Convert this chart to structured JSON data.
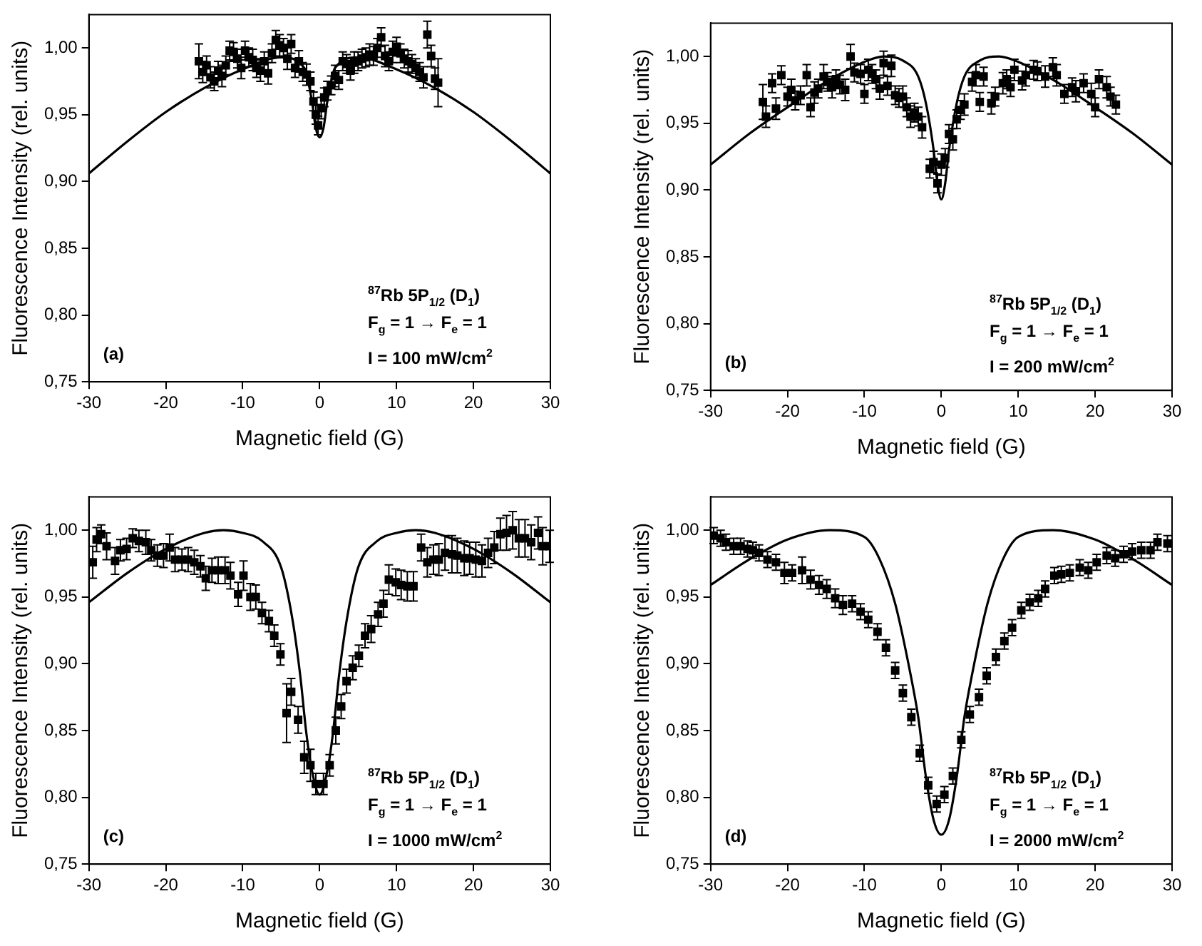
{
  "chart_data": [
    {
      "type": "scatter",
      "xlabel": "Magnetic field (G)",
      "ylabel": "Fluorescence Intensity (rel. units)",
      "xlim": [
        -30,
        30
      ],
      "xticks": [
        -30,
        -20,
        -10,
        0,
        10,
        20,
        30
      ],
      "ylim": [
        0.75,
        1.025
      ],
      "yticks": [
        {
          "value": 0.75,
          "label": "0,75"
        },
        {
          "value": 0.8,
          "label": "0,80"
        },
        {
          "value": 0.85,
          "label": "0,85"
        },
        {
          "value": 0.9,
          "label": "0,90"
        },
        {
          "value": 0.95,
          "label": "0,95"
        },
        {
          "value": 1.0,
          "label": "1,00"
        }
      ],
      "grid": false,
      "legend": false,
      "annotations": [
        "(a)",
        "$^{87}$Rb 5P$_{1/2}$ (D$_{1}$)",
        "F$_{g}$ = 1 → F$_{e}$ = 1",
        "I = 100 mW/cm$^{2}$"
      ],
      "series": [
        {
          "marker": "square",
          "color": "#000000",
          "x": [
            -15.7,
            -15.2,
            -14.7,
            -14.2,
            -13.7,
            -13.2,
            -12.7,
            -12.2,
            -11.7,
            -11.2,
            -10.7,
            -10.2,
            -9.7,
            -9.2,
            -8.7,
            -8.2,
            -7.7,
            -7.2,
            -6.7,
            -6.2,
            -5.7,
            -5.2,
            -4.7,
            -4.2,
            -3.7,
            -3.2,
            -2.7,
            -2.2,
            -1.7,
            -1.2,
            -0.8,
            -0.5,
            -0.2,
            0.2,
            0.6,
            1.0,
            1.5,
            2.0,
            2.5,
            3.0,
            3.5,
            4.0,
            4.5,
            5.0,
            5.5,
            6.0,
            6.5,
            7.0,
            7.5,
            8.0,
            8.5,
            9.0,
            9.5,
            10.0,
            10.5,
            11.0,
            11.5,
            12.0,
            12.5,
            13.0,
            13.5,
            14.0,
            14.5,
            15.0,
            15.4
          ],
          "values": [
            0.99,
            0.982,
            0.987,
            0.978,
            0.975,
            0.983,
            0.979,
            0.987,
            0.998,
            0.997,
            0.992,
            0.985,
            0.998,
            0.993,
            0.991,
            0.985,
            0.983,
            0.99,
            0.981,
            0.996,
            1.006,
            1.002,
            1.0,
            0.992,
            1.003,
            0.985,
            0.99,
            0.982,
            0.98,
            0.975,
            0.96,
            0.95,
            0.942,
            0.955,
            0.963,
            0.968,
            0.972,
            0.979,
            0.976,
            0.99,
            0.988,
            0.983,
            0.989,
            0.99,
            0.992,
            0.993,
            0.995,
            0.994,
            1.0,
            1.008,
            0.994,
            0.99,
            0.997,
            1.001,
            0.996,
            0.992,
            0.99,
            0.988,
            0.985,
            0.982,
            0.978,
            1.01,
            0.994,
            0.977,
            0.974
          ],
          "errors": [
            0.013,
            0.008,
            0.007,
            0.008,
            0.007,
            0.007,
            0.008,
            0.007,
            0.007,
            0.007,
            0.007,
            0.008,
            0.007,
            0.007,
            0.008,
            0.007,
            0.008,
            0.007,
            0.008,
            0.007,
            0.007,
            0.008,
            0.007,
            0.008,
            0.007,
            0.007,
            0.008,
            0.007,
            0.008,
            0.007,
            0.007,
            0.007,
            0.007,
            0.008,
            0.007,
            0.007,
            0.007,
            0.008,
            0.007,
            0.007,
            0.007,
            0.007,
            0.008,
            0.007,
            0.007,
            0.007,
            0.008,
            0.007,
            0.007,
            0.007,
            0.008,
            0.007,
            0.008,
            0.007,
            0.007,
            0.007,
            0.008,
            0.007,
            0.007,
            0.007,
            0.008,
            0.01,
            0.008,
            0.008,
            0.018
          ]
        },
        {
          "type": "line",
          "color": "#000000",
          "x": [
            -30,
            -25,
            -20,
            -15,
            -10,
            -5,
            -2,
            -1,
            -0.5,
            0,
            0.5,
            1,
            2,
            5,
            10,
            15,
            20,
            25,
            30
          ],
          "values": [
            0.906,
            0.93,
            0.952,
            0.97,
            0.984,
            0.993,
            0.985,
            0.96,
            0.94,
            0.933,
            0.94,
            0.96,
            0.985,
            0.993,
            0.984,
            0.97,
            0.952,
            0.93,
            0.906
          ]
        }
      ]
    },
    {
      "type": "scatter",
      "xlabel": "Magnetic field (G)",
      "ylabel": "Fluorescence Intensity (rel. units)",
      "xlim": [
        -30,
        30
      ],
      "xticks": [
        -30,
        -20,
        -10,
        0,
        10,
        20,
        30
      ],
      "ylim": [
        0.75,
        1.025
      ],
      "yticks": [
        {
          "value": 0.75,
          "label": "0,75"
        },
        {
          "value": 0.8,
          "label": "0,80"
        },
        {
          "value": 0.85,
          "label": "0,85"
        },
        {
          "value": 0.9,
          "label": "0,90"
        },
        {
          "value": 0.95,
          "label": "0,95"
        },
        {
          "value": 1.0,
          "label": "1,00"
        }
      ],
      "grid": false,
      "legend": false,
      "annotations": [
        "(b)",
        "$^{87}$Rb 5P$_{1/2}$ (D$_{1}$)",
        "F$_{g}$ = 1 → F$_{e}$ = 1",
        "I = 200 mW/cm$^{2}$"
      ],
      "series": [
        {
          "marker": "square",
          "color": "#000000",
          "x": [
            -23.2,
            -22.8,
            -22.0,
            -21.5,
            -20.8,
            -20.0,
            -19.5,
            -19.0,
            -18.3,
            -17.5,
            -17.0,
            -16.5,
            -16.0,
            -15.3,
            -14.8,
            -14.2,
            -13.7,
            -13.2,
            -12.5,
            -11.8,
            -11.3,
            -10.5,
            -10.0,
            -9.5,
            -9.0,
            -8.5,
            -8.0,
            -7.5,
            -7.0,
            -6.5,
            -6.0,
            -5.5,
            -5.0,
            -4.5,
            -4.0,
            -3.5,
            -3.0,
            -2.5,
            -1.5,
            -1.0,
            -0.5,
            0.0,
            0.5,
            1.0,
            1.5,
            2.0,
            2.5,
            3.0,
            4.0,
            4.5,
            5.0,
            5.5,
            6.5,
            7.0,
            8.0,
            8.5,
            9.0,
            9.5,
            10.5,
            11.0,
            12.0,
            12.5,
            13.5,
            14.5,
            15.0,
            16.0,
            17.0,
            17.5,
            18.5,
            19.5,
            20.0,
            20.5,
            21.5,
            22.0,
            22.7
          ],
          "values": [
            0.966,
            0.955,
            0.98,
            0.961,
            0.986,
            0.97,
            0.975,
            0.967,
            0.971,
            0.986,
            0.962,
            0.973,
            0.976,
            0.985,
            0.981,
            0.977,
            0.983,
            0.979,
            0.975,
            1.0,
            0.988,
            0.987,
            0.972,
            0.99,
            0.987,
            0.983,
            0.976,
            0.995,
            0.978,
            0.993,
            0.971,
            0.969,
            0.97,
            0.962,
            0.955,
            0.958,
            0.955,
            0.947,
            0.916,
            0.921,
            0.905,
            0.919,
            0.924,
            0.942,
            0.938,
            0.953,
            0.96,
            0.964,
            0.981,
            0.986,
            0.966,
            0.985,
            0.965,
            0.97,
            0.98,
            0.983,
            0.977,
            0.99,
            0.982,
            0.986,
            0.99,
            0.989,
            0.985,
            0.992,
            0.986,
            0.972,
            0.977,
            0.974,
            0.98,
            0.972,
            0.962,
            0.983,
            0.977,
            0.97,
            0.964
          ],
          "errors": [
            0.013,
            0.008,
            0.007,
            0.008,
            0.007,
            0.007,
            0.008,
            0.007,
            0.007,
            0.008,
            0.007,
            0.008,
            0.007,
            0.009,
            0.007,
            0.008,
            0.007,
            0.007,
            0.008,
            0.009,
            0.007,
            0.007,
            0.007,
            0.008,
            0.007,
            0.007,
            0.008,
            0.009,
            0.007,
            0.008,
            0.007,
            0.007,
            0.008,
            0.007,
            0.008,
            0.007,
            0.007,
            0.008,
            0.007,
            0.008,
            0.007,
            0.008,
            0.007,
            0.007,
            0.008,
            0.007,
            0.007,
            0.008,
            0.007,
            0.008,
            0.007,
            0.007,
            0.008,
            0.007,
            0.008,
            0.007,
            0.007,
            0.008,
            0.007,
            0.008,
            0.007,
            0.007,
            0.008,
            0.007,
            0.008,
            0.007,
            0.007,
            0.008,
            0.007,
            0.008,
            0.007,
            0.007,
            0.008,
            0.007,
            0.007
          ]
        },
        {
          "type": "line",
          "color": "#000000",
          "x": [
            -30,
            -25,
            -20,
            -15,
            -10,
            -7.5,
            -5,
            -3,
            -2,
            -1,
            -0.5,
            0,
            0.5,
            1,
            2,
            3,
            5,
            7.5,
            10,
            15,
            20,
            25,
            30
          ],
          "values": [
            0.919,
            0.942,
            0.962,
            0.981,
            0.996,
            1.0,
            0.997,
            0.985,
            0.965,
            0.93,
            0.905,
            0.893,
            0.905,
            0.93,
            0.965,
            0.985,
            0.997,
            1.0,
            0.996,
            0.981,
            0.962,
            0.942,
            0.919
          ]
        }
      ]
    },
    {
      "type": "scatter",
      "xlabel": "Magnetic field (G)",
      "ylabel": "Fluorescence Intensity (rel. units)",
      "xlim": [
        -30,
        30
      ],
      "xticks": [
        -30,
        -20,
        -10,
        0,
        10,
        20,
        30
      ],
      "ylim": [
        0.75,
        1.025
      ],
      "yticks": [
        {
          "value": 0.75,
          "label": "0,75"
        },
        {
          "value": 0.8,
          "label": "0,80"
        },
        {
          "value": 0.85,
          "label": "0,85"
        },
        {
          "value": 0.9,
          "label": "0,90"
        },
        {
          "value": 0.95,
          "label": "0,95"
        },
        {
          "value": 1.0,
          "label": "1,00"
        }
      ],
      "grid": false,
      "legend": false,
      "annotations": [
        "(c)",
        "$^{87}$Rb 5P$_{1/2}$ (D$_{1}$)",
        "F$_{g}$ = 1 → F$_{e}$ = 1",
        "I = 1000 mW/cm$^{2}$"
      ],
      "series": [
        {
          "marker": "square",
          "color": "#000000",
          "x": [
            -29.5,
            -29.0,
            -28.4,
            -27.7,
            -26.6,
            -25.9,
            -25.1,
            -24.3,
            -23.5,
            -22.6,
            -21.9,
            -21.1,
            -20.3,
            -19.5,
            -18.8,
            -17.9,
            -17.1,
            -16.3,
            -15.5,
            -14.8,
            -14.0,
            -13.2,
            -12.3,
            -11.6,
            -10.6,
            -9.9,
            -9.0,
            -8.3,
            -7.5,
            -6.6,
            -5.9,
            -5.1,
            -4.3,
            -3.7,
            -2.8,
            -2.0,
            -1.2,
            -0.5,
            0.5,
            1.3,
            2.1,
            2.8,
            3.5,
            4.3,
            5.1,
            5.9,
            6.7,
            7.6,
            8.3,
            9.0,
            9.9,
            10.6,
            11.4,
            12.2,
            13.2,
            14.0,
            14.8,
            15.5,
            16.3,
            17.2,
            17.9,
            18.8,
            19.5,
            20.3,
            21.1,
            21.9,
            22.7,
            23.5,
            24.3,
            25.1,
            25.9,
            26.7,
            27.5,
            28.4,
            29.0,
            29.9
          ],
          "values": [
            0.976,
            0.993,
            0.997,
            0.988,
            0.977,
            0.985,
            0.986,
            0.994,
            0.992,
            0.991,
            0.985,
            0.981,
            0.981,
            0.987,
            0.978,
            0.978,
            0.978,
            0.976,
            0.973,
            0.964,
            0.97,
            0.97,
            0.97,
            0.966,
            0.952,
            0.966,
            0.95,
            0.95,
            0.938,
            0.932,
            0.921,
            0.907,
            0.863,
            0.879,
            0.858,
            0.83,
            0.824,
            0.81,
            0.81,
            0.824,
            0.85,
            0.868,
            0.887,
            0.897,
            0.906,
            0.921,
            0.926,
            0.937,
            0.945,
            0.963,
            0.961,
            0.959,
            0.958,
            0.958,
            0.987,
            0.976,
            0.978,
            0.978,
            0.983,
            0.982,
            0.981,
            0.979,
            0.979,
            0.978,
            0.977,
            0.983,
            0.987,
            0.997,
            0.998,
            1.0,
            0.994,
            0.994,
            0.991,
            0.998,
            0.988,
            0.988
          ],
          "errors": [
            0.012,
            0.009,
            0.007,
            0.01,
            0.01,
            0.008,
            0.008,
            0.007,
            0.008,
            0.009,
            0.008,
            0.008,
            0.009,
            0.01,
            0.009,
            0.008,
            0.009,
            0.009,
            0.008,
            0.009,
            0.009,
            0.01,
            0.01,
            0.01,
            0.009,
            0.011,
            0.01,
            0.009,
            0.008,
            0.008,
            0.008,
            0.008,
            0.022,
            0.01,
            0.01,
            0.012,
            0.012,
            0.008,
            0.008,
            0.008,
            0.01,
            0.009,
            0.009,
            0.009,
            0.008,
            0.009,
            0.01,
            0.009,
            0.01,
            0.011,
            0.01,
            0.011,
            0.011,
            0.011,
            0.01,
            0.011,
            0.011,
            0.012,
            0.013,
            0.014,
            0.013,
            0.013,
            0.012,
            0.013,
            0.012,
            0.011,
            0.012,
            0.012,
            0.013,
            0.014,
            0.014,
            0.014,
            0.013,
            0.012,
            0.014,
            0.012
          ]
        },
        {
          "type": "line",
          "color": "#000000",
          "x": [
            -30,
            -25,
            -20,
            -15,
            -12.5,
            -10,
            -7.5,
            -5,
            -3.5,
            -2.5,
            -1.75,
            -1,
            0,
            1,
            1.75,
            2.5,
            3.5,
            5,
            7.5,
            10,
            12.5,
            15,
            20,
            25,
            30
          ],
          "values": [
            0.946,
            0.968,
            0.986,
            0.998,
            1.0,
            0.998,
            0.992,
            0.972,
            0.932,
            0.89,
            0.849,
            0.82,
            0.802,
            0.82,
            0.849,
            0.89,
            0.932,
            0.972,
            0.992,
            0.998,
            1.0,
            0.998,
            0.986,
            0.968,
            0.946
          ]
        }
      ]
    },
    {
      "type": "scatter",
      "xlabel": "Magnetic field (G)",
      "ylabel": "Fluorescence Intensity (rel. units)",
      "xlim": [
        -30,
        30
      ],
      "xticks": [
        -30,
        -20,
        -10,
        0,
        10,
        20,
        30
      ],
      "ylim": [
        0.75,
        1.025
      ],
      "yticks": [
        {
          "value": 0.75,
          "label": "0,75"
        },
        {
          "value": 0.8,
          "label": "0,80"
        },
        {
          "value": 0.85,
          "label": "0,85"
        },
        {
          "value": 0.9,
          "label": "0,90"
        },
        {
          "value": 0.95,
          "label": "0,95"
        },
        {
          "value": 1.0,
          "label": "1,00"
        }
      ],
      "grid": false,
      "legend": false,
      "annotations": [
        "(d)",
        "$^{87}$Rb 5P$_{1/2}$ (D$_{1}$)",
        "F$_{g}$ = 1 → F$_{e}$ = 1",
        "I = 2000 mW/cm$^{2}$"
      ],
      "series": [
        {
          "marker": "square",
          "color": "#000000",
          "x": [
            -29.6,
            -28.7,
            -28.0,
            -27.0,
            -26.1,
            -25.2,
            -24.5,
            -23.7,
            -22.6,
            -21.5,
            -20.4,
            -19.4,
            -18.1,
            -17.0,
            -15.9,
            -14.9,
            -13.8,
            -12.8,
            -11.6,
            -10.5,
            -9.5,
            -8.3,
            -7.2,
            -6.0,
            -5.0,
            -3.9,
            -2.8,
            -1.7,
            -0.6,
            0.4,
            1.5,
            2.6,
            3.7,
            4.9,
            5.9,
            7.1,
            8.2,
            9.2,
            10.4,
            11.5,
            12.6,
            13.5,
            14.7,
            15.6,
            16.7,
            18.0,
            19.1,
            20.2,
            21.5,
            22.6,
            23.7,
            24.8,
            26.0,
            27.2,
            28.1,
            29.4
          ],
          "values": [
            0.996,
            0.994,
            0.991,
            0.988,
            0.988,
            0.986,
            0.985,
            0.983,
            0.978,
            0.976,
            0.968,
            0.968,
            0.97,
            0.963,
            0.959,
            0.956,
            0.949,
            0.944,
            0.945,
            0.939,
            0.933,
            0.924,
            0.912,
            0.895,
            0.878,
            0.86,
            0.833,
            0.809,
            0.795,
            0.802,
            0.816,
            0.843,
            0.862,
            0.875,
            0.891,
            0.905,
            0.917,
            0.927,
            0.94,
            0.946,
            0.949,
            0.956,
            0.966,
            0.967,
            0.968,
            0.972,
            0.97,
            0.976,
            0.981,
            0.979,
            0.982,
            0.984,
            0.985,
            0.985,
            0.991,
            0.99
          ],
          "errors": [
            0.006,
            0.006,
            0.006,
            0.006,
            0.006,
            0.006,
            0.006,
            0.006,
            0.006,
            0.006,
            0.008,
            0.006,
            0.01,
            0.007,
            0.007,
            0.007,
            0.007,
            0.007,
            0.006,
            0.006,
            0.006,
            0.006,
            0.006,
            0.006,
            0.006,
            0.006,
            0.006,
            0.006,
            0.006,
            0.006,
            0.006,
            0.006,
            0.006,
            0.006,
            0.006,
            0.006,
            0.006,
            0.006,
            0.006,
            0.006,
            0.006,
            0.006,
            0.006,
            0.006,
            0.006,
            0.006,
            0.006,
            0.006,
            0.006,
            0.006,
            0.006,
            0.006,
            0.006,
            0.006,
            0.006,
            0.006
          ]
        },
        {
          "type": "line",
          "color": "#000000",
          "x": [
            -30,
            -25,
            -20,
            -14.5,
            -10,
            -8,
            -6,
            -4,
            -3,
            -2,
            -1,
            0,
            1,
            2,
            3,
            4,
            6,
            8,
            10,
            14.5,
            20,
            25,
            30
          ],
          "values": [
            0.959,
            0.978,
            0.993,
            1.0,
            0.995,
            0.978,
            0.945,
            0.892,
            0.86,
            0.815,
            0.783,
            0.772,
            0.783,
            0.815,
            0.86,
            0.892,
            0.945,
            0.978,
            0.995,
            1.0,
            0.993,
            0.978,
            0.959
          ]
        }
      ]
    }
  ]
}
